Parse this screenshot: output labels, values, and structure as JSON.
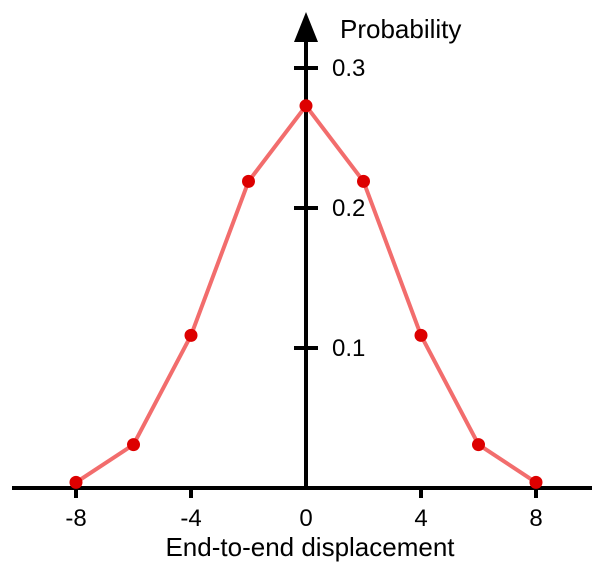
{
  "chart_data": {
    "type": "line",
    "xlabel": "End-to-end displacement",
    "ylabel": "Probability",
    "xlim": [
      -10.5,
      10.2
    ],
    "ylim": [
      0,
      0.33
    ],
    "x_ticks": [
      -8,
      -4,
      0,
      4,
      8
    ],
    "x_tick_labels": [
      "-8",
      "-4",
      "0",
      "4",
      "8"
    ],
    "y_ticks": [
      0.1,
      0.2,
      0.3
    ],
    "y_tick_labels": [
      "0.1",
      "0.2",
      "0.3"
    ],
    "grid": false,
    "legend": false,
    "series": [
      {
        "x": [
          -8,
          -6,
          -4,
          -2,
          0,
          2,
          4,
          6,
          8
        ],
        "y": [
          0.004,
          0.031,
          0.109,
          0.219,
          0.273,
          0.219,
          0.109,
          0.031,
          0.004
        ]
      }
    ],
    "colors": {
      "line": "#f26d6d",
      "points": "#dd0000",
      "axes": "#000000"
    }
  }
}
